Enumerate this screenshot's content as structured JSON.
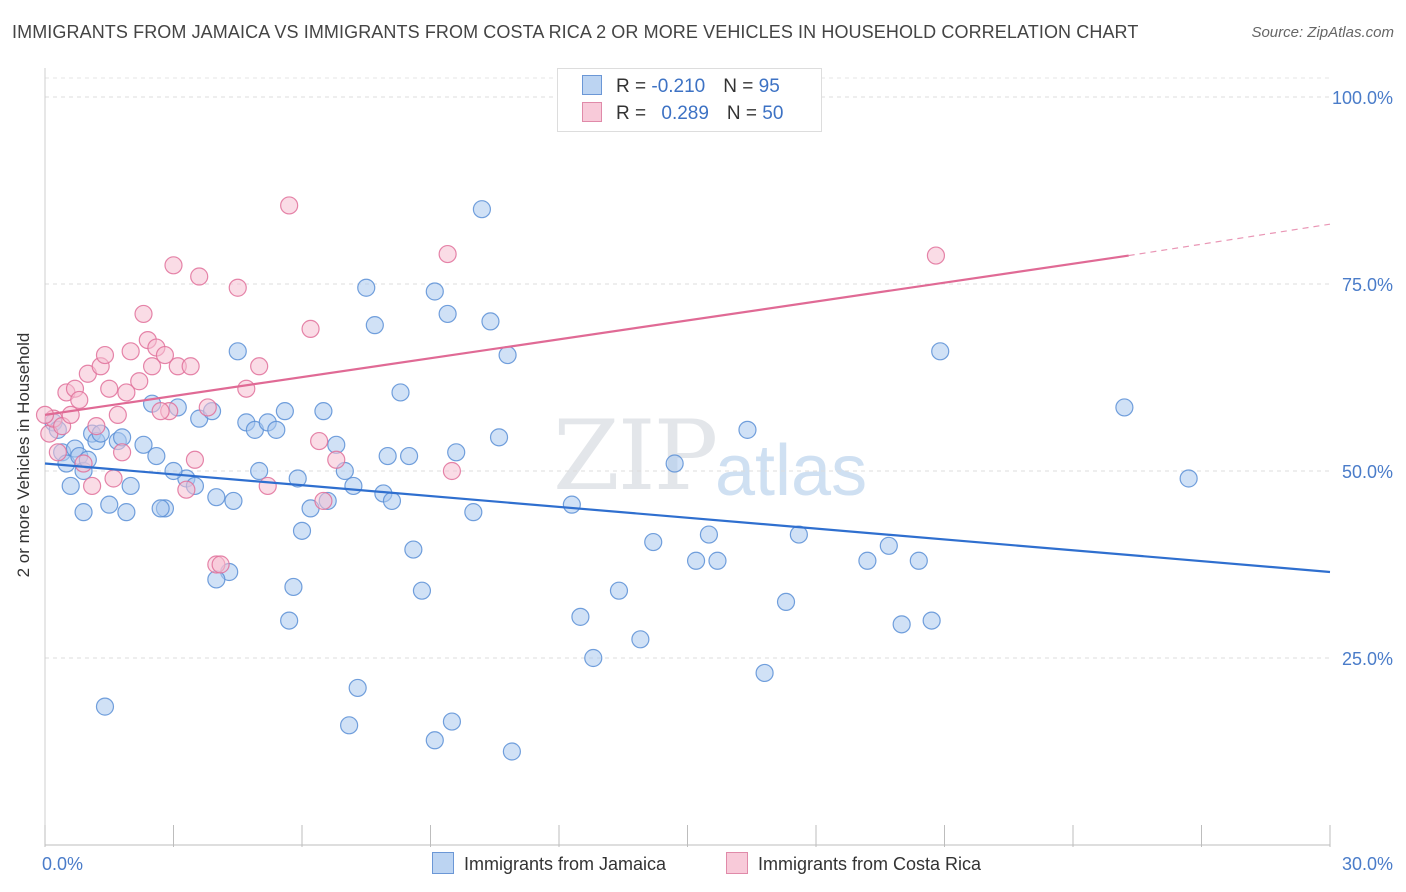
{
  "title": "IMMIGRANTS FROM JAMAICA VS IMMIGRANTS FROM COSTA RICA 2 OR MORE VEHICLES IN HOUSEHOLD CORRELATION CHART",
  "source": "Source: ZipAtlas.com",
  "watermark": {
    "zip": "ZIP",
    "atlas": "atlas"
  },
  "legend": {
    "row1": {
      "r_label": "R = ",
      "r_value": "-0.210",
      "n_label": "N = ",
      "n_value": "95"
    },
    "row2": {
      "r_label": "R = ",
      "r_value": "0.289",
      "n_label": "N = ",
      "n_value": "50"
    }
  },
  "bottom_legend": {
    "jamaica": "Immigrants from Jamaica",
    "costa_rica": "Immigrants from Costa Rica"
  },
  "colors": {
    "jamaica": "#5b8fd6",
    "jamaica_fill": "#a9c8ee",
    "costa_rica": "#e0709a",
    "costa_rica_fill": "#f5bfd2",
    "tick": "#4a7cc9"
  },
  "chart_data": {
    "type": "scatter",
    "title": "IMMIGRANTS FROM JAMAICA VS IMMIGRANTS FROM COSTA RICA 2 OR MORE VEHICLES IN HOUSEHOLD CORRELATION CHART",
    "xlabel": "",
    "ylabel": "2 or more Vehicles in Household",
    "xlim": [
      0,
      30
    ],
    "ylim": [
      0,
      105
    ],
    "x_ticks": [
      {
        "value": 0,
        "label": "0.0%"
      },
      {
        "value": 30,
        "label": "30.0%"
      }
    ],
    "y_ticks": [
      {
        "value": 25,
        "label": "25.0%"
      },
      {
        "value": 50,
        "label": "50.0%"
      },
      {
        "value": 75,
        "label": "75.0%"
      },
      {
        "value": 100,
        "label": "100.0%"
      }
    ],
    "grid": true,
    "legend_position": "top-center",
    "series": [
      {
        "name": "Immigrants from Jamaica",
        "r": -0.21,
        "n": 95,
        "trend": {
          "x": [
            0,
            30
          ],
          "y": [
            51.0,
            36.5
          ]
        },
        "points": [
          [
            0.2,
            56.5
          ],
          [
            0.3,
            55.5
          ],
          [
            0.4,
            52.5
          ],
          [
            0.5,
            51
          ],
          [
            0.6,
            48
          ],
          [
            0.7,
            53
          ],
          [
            0.8,
            52
          ],
          [
            0.9,
            50
          ],
          [
            1.0,
            51.5
          ],
          [
            1.1,
            55
          ],
          [
            1.2,
            54
          ],
          [
            1.3,
            55
          ],
          [
            1.5,
            45.5
          ],
          [
            1.7,
            54
          ],
          [
            1.8,
            54.5
          ],
          [
            1.9,
            44.5
          ],
          [
            2.0,
            48
          ],
          [
            2.3,
            53.5
          ],
          [
            2.5,
            59
          ],
          [
            2.6,
            52
          ],
          [
            2.8,
            45
          ],
          [
            3.1,
            58.5
          ],
          [
            3.3,
            49
          ],
          [
            3.5,
            48
          ],
          [
            3.6,
            57
          ],
          [
            3.9,
            58
          ],
          [
            4.0,
            46.5
          ],
          [
            4.3,
            36.5
          ],
          [
            4.5,
            66
          ],
          [
            4.7,
            56.5
          ],
          [
            4.9,
            55.5
          ],
          [
            5.0,
            50
          ],
          [
            5.2,
            56.5
          ],
          [
            5.4,
            55.5
          ],
          [
            5.6,
            58
          ],
          [
            5.8,
            34.5
          ],
          [
            5.9,
            49
          ],
          [
            6.0,
            42
          ],
          [
            6.2,
            45
          ],
          [
            6.5,
            58
          ],
          [
            6.8,
            53.5
          ],
          [
            7.0,
            50
          ],
          [
            7.2,
            48
          ],
          [
            7.5,
            74.5
          ],
          [
            7.7,
            69.5
          ],
          [
            7.9,
            47
          ],
          [
            8.1,
            46
          ],
          [
            8.3,
            60.5
          ],
          [
            8.5,
            52
          ],
          [
            8.6,
            39.5
          ],
          [
            8.8,
            34
          ],
          [
            9.1,
            74
          ],
          [
            9.4,
            71
          ],
          [
            9.6,
            52.5
          ],
          [
            10.0,
            44.5
          ],
          [
            10.2,
            85
          ],
          [
            10.4,
            70
          ],
          [
            10.6,
            54.5
          ],
          [
            10.8,
            65.5
          ],
          [
            12.3,
            45.5
          ],
          [
            12.5,
            30.5
          ],
          [
            12.8,
            25
          ],
          [
            13.9,
            27.5
          ],
          [
            14.2,
            40.5
          ],
          [
            14.7,
            51
          ],
          [
            15.2,
            38
          ],
          [
            15.5,
            41.5
          ],
          [
            15.7,
            38
          ],
          [
            16.4,
            55.5
          ],
          [
            16.8,
            23
          ],
          [
            17.3,
            32.5
          ],
          [
            17.6,
            41.5
          ],
          [
            19.2,
            38
          ],
          [
            19.7,
            40
          ],
          [
            20.0,
            29.5
          ],
          [
            20.4,
            38
          ],
          [
            20.7,
            30
          ],
          [
            20.9,
            66
          ],
          [
            25.2,
            58.5
          ],
          [
            26.7,
            49
          ],
          [
            1.4,
            18.5
          ],
          [
            4.0,
            35.5
          ],
          [
            5.7,
            30
          ],
          [
            7.3,
            21
          ],
          [
            7.1,
            16
          ],
          [
            9.5,
            16.5
          ],
          [
            9.1,
            14
          ],
          [
            10.9,
            12.5
          ],
          [
            3.0,
            50
          ],
          [
            6.6,
            46
          ],
          [
            0.9,
            44.5
          ],
          [
            2.7,
            45
          ],
          [
            4.4,
            46
          ],
          [
            8.0,
            52
          ],
          [
            13.4,
            34
          ]
        ]
      },
      {
        "name": "Immigrants from Costa Rica",
        "r": 0.289,
        "n": 50,
        "trend": {
          "x": [
            0,
            25.3
          ],
          "y": [
            57.5,
            78.8
          ]
        },
        "trend_extension": {
          "x": [
            25.3,
            30
          ],
          "y": [
            78.8,
            83.0
          ]
        },
        "points": [
          [
            0.1,
            55
          ],
          [
            0.2,
            57
          ],
          [
            0.3,
            52.5
          ],
          [
            0.4,
            56
          ],
          [
            0.5,
            60.5
          ],
          [
            0.6,
            57.5
          ],
          [
            0.7,
            61
          ],
          [
            0.8,
            59.5
          ],
          [
            1.0,
            63
          ],
          [
            1.1,
            48
          ],
          [
            1.2,
            56
          ],
          [
            1.3,
            64
          ],
          [
            1.4,
            65.5
          ],
          [
            1.5,
            61
          ],
          [
            1.6,
            49
          ],
          [
            1.7,
            57.5
          ],
          [
            1.8,
            52.5
          ],
          [
            2.0,
            66
          ],
          [
            2.2,
            62
          ],
          [
            2.3,
            71
          ],
          [
            2.4,
            67.5
          ],
          [
            2.5,
            64
          ],
          [
            2.6,
            66.5
          ],
          [
            2.8,
            65.5
          ],
          [
            2.9,
            58
          ],
          [
            3.0,
            77.5
          ],
          [
            3.1,
            64
          ],
          [
            3.3,
            47.5
          ],
          [
            3.4,
            64
          ],
          [
            3.6,
            76
          ],
          [
            4.0,
            37.5
          ],
          [
            4.5,
            74.5
          ],
          [
            4.7,
            61
          ],
          [
            5.0,
            64
          ],
          [
            5.2,
            48
          ],
          [
            5.7,
            85.5
          ],
          [
            6.2,
            69
          ],
          [
            6.4,
            54
          ],
          [
            6.8,
            51.5
          ],
          [
            9.4,
            79
          ],
          [
            9.5,
            50
          ],
          [
            20.8,
            78.8
          ],
          [
            0.0,
            57.5
          ],
          [
            0.9,
            51
          ],
          [
            1.9,
            60.5
          ],
          [
            2.7,
            58
          ],
          [
            3.8,
            58.5
          ],
          [
            4.1,
            37.5
          ],
          [
            3.5,
            51.5
          ],
          [
            6.5,
            46
          ]
        ]
      }
    ]
  }
}
